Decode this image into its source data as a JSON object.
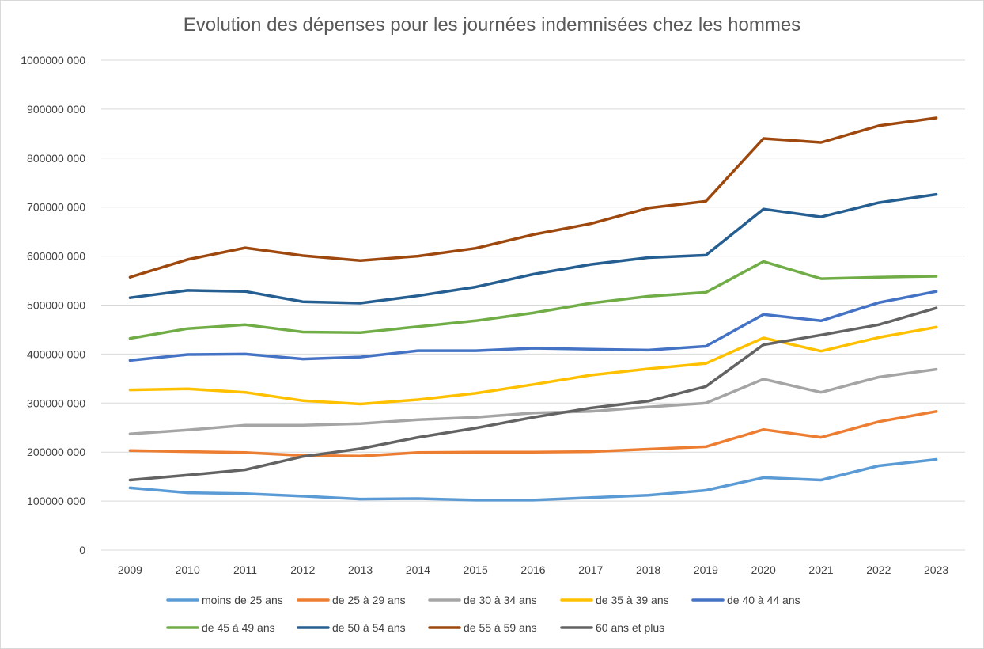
{
  "chart_data": {
    "type": "line",
    "title": "Evolution des dépenses pour les journées indemnisées chez les hommes",
    "xlabel": "",
    "ylabel": "",
    "ylim": [
      0,
      1000000000
    ],
    "y_ticks": [
      0,
      100000000,
      200000000,
      300000000,
      400000000,
      500000000,
      600000000,
      700000000,
      800000000,
      900000000,
      1000000000
    ],
    "y_tick_labels": [
      "0",
      "100000 000",
      "200000 000",
      "300000 000",
      "400000 000",
      "500000 000",
      "600000 000",
      "700000 000",
      "800000 000",
      "900000 000",
      "1000000 000"
    ],
    "grid": true,
    "legend_position": "bottom",
    "categories": [
      "2009",
      "2010",
      "2011",
      "2012",
      "2013",
      "2014",
      "2015",
      "2016",
      "2017",
      "2018",
      "2019",
      "2020",
      "2021",
      "2022",
      "2023"
    ],
    "series": [
      {
        "name": "moins de 25 ans",
        "color": "#5b9bd5",
        "values": [
          127000000,
          117000000,
          115000000,
          110000000,
          104000000,
          105000000,
          102000000,
          102000000,
          107000000,
          112000000,
          122000000,
          148000000,
          143000000,
          172000000,
          185000000
        ]
      },
      {
        "name": "de 25 à 29 ans",
        "color": "#ed7d31",
        "values": [
          203000000,
          201000000,
          199000000,
          193000000,
          192000000,
          199000000,
          200000000,
          200000000,
          201000000,
          206000000,
          211000000,
          246000000,
          230000000,
          262000000,
          283000000
        ]
      },
      {
        "name": "de 30 à 34 ans",
        "color": "#a5a5a5",
        "values": [
          237000000,
          245000000,
          255000000,
          255000000,
          258000000,
          266000000,
          271000000,
          280000000,
          283000000,
          292000000,
          300000000,
          349000000,
          322000000,
          353000000,
          369000000
        ]
      },
      {
        "name": "de 35 à 39 ans",
        "color": "#ffc000",
        "values": [
          327000000,
          329000000,
          322000000,
          305000000,
          298000000,
          307000000,
          320000000,
          338000000,
          357000000,
          370000000,
          381000000,
          433000000,
          406000000,
          434000000,
          455000000
        ]
      },
      {
        "name": "de 40 à 44 ans",
        "color": "#4472c4",
        "values": [
          387000000,
          399000000,
          400000000,
          390000000,
          394000000,
          407000000,
          407000000,
          412000000,
          410000000,
          408000000,
          416000000,
          481000000,
          468000000,
          505000000,
          528000000
        ]
      },
      {
        "name": "de 45 à 49 ans",
        "color": "#70ad47",
        "values": [
          432000000,
          452000000,
          460000000,
          445000000,
          444000000,
          456000000,
          468000000,
          484000000,
          504000000,
          518000000,
          526000000,
          589000000,
          554000000,
          557000000,
          559000000
        ]
      },
      {
        "name": "de 50 à 54 ans",
        "color": "#255e91",
        "values": [
          515000000,
          530000000,
          528000000,
          507000000,
          504000000,
          519000000,
          537000000,
          563000000,
          583000000,
          597000000,
          602000000,
          696000000,
          680000000,
          709000000,
          726000000
        ]
      },
      {
        "name": "de 55 à 59 ans",
        "color": "#9e480e",
        "values": [
          557000000,
          593000000,
          617000000,
          601000000,
          591000000,
          600000000,
          616000000,
          644000000,
          666000000,
          698000000,
          712000000,
          840000000,
          832000000,
          866000000,
          882000000
        ]
      },
      {
        "name": "60 ans et plus",
        "color": "#636363",
        "values": [
          143000000,
          153000000,
          164000000,
          191000000,
          207000000,
          230000000,
          249000000,
          271000000,
          290000000,
          304000000,
          334000000,
          419000000,
          439000000,
          460000000,
          494000000
        ]
      }
    ]
  }
}
